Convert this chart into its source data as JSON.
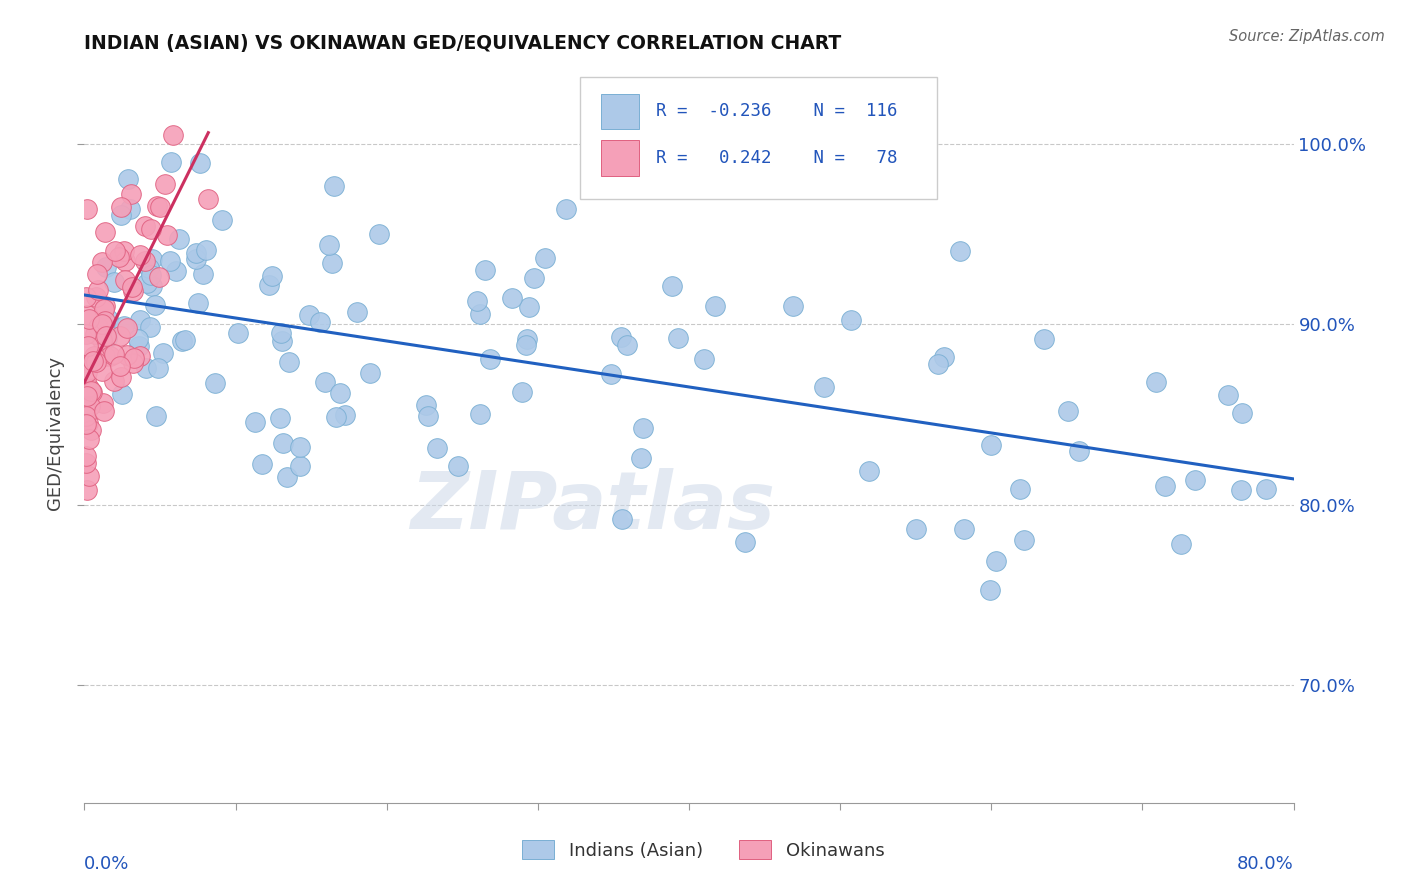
{
  "title": "INDIAN (ASIAN) VS OKINAWAN GED/EQUIVALENCY CORRELATION CHART",
  "source": "Source: ZipAtlas.com",
  "ylabel": "GED/Equivalency",
  "ytick_values": [
    0.7,
    0.8,
    0.9,
    1.0
  ],
  "xlim": [
    0.0,
    0.8
  ],
  "ylim": [
    0.635,
    1.045
  ],
  "indian_R": -0.236,
  "indian_N": 116,
  "okinawan_R": 0.242,
  "okinawan_N": 78,
  "indian_color": "#adc9e8",
  "indian_edge": "#7aafd4",
  "okinawan_color": "#f5a0b8",
  "okinawan_edge": "#e06080",
  "trend_indian_color": "#2060c0",
  "trend_okinawan_color": "#cc3060",
  "watermark": "ZIPatlas",
  "legend_R1": "R =  -0.236",
  "legend_N1": "N =  116",
  "legend_R2": "R =   0.242",
  "legend_N2": "N =   78"
}
